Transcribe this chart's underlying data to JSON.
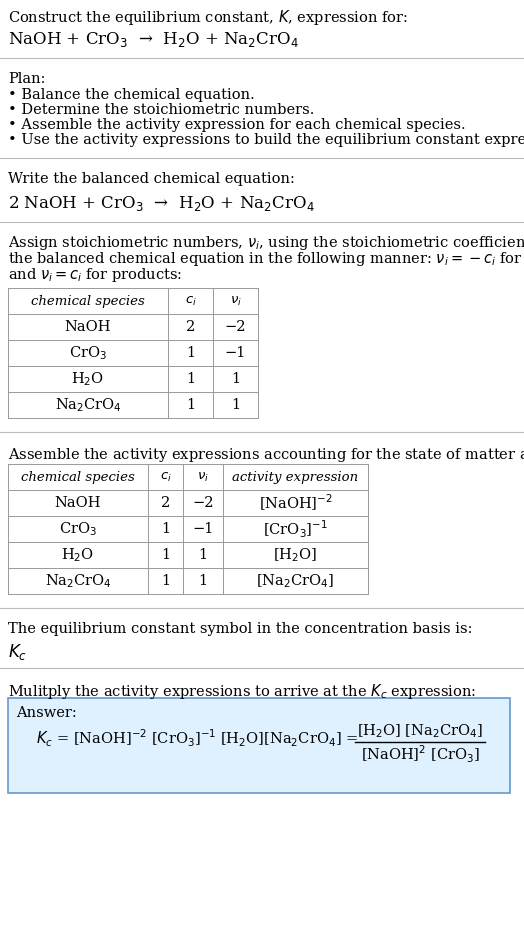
{
  "title_line1": "Construct the equilibrium constant, $K$, expression for:",
  "title_line2": "NaOH + CrO$_3$  →  H$_2$O + Na$_2$CrO$_4$",
  "plan_header": "Plan:",
  "plan_items": [
    "• Balance the chemical equation.",
    "• Determine the stoichiometric numbers.",
    "• Assemble the activity expression for each chemical species.",
    "• Use the activity expressions to build the equilibrium constant expression."
  ],
  "balanced_header": "Write the balanced chemical equation:",
  "balanced_eq": "2 NaOH + CrO$_3$  →  H$_2$O + Na$_2$CrO$_4$",
  "stoich_intro_lines": [
    "Assign stoichiometric numbers, $\\nu_i$, using the stoichiometric coefficients, $c_i$, from",
    "the balanced chemical equation in the following manner: $\\nu_i = -c_i$ for reactants",
    "and $\\nu_i = c_i$ for products:"
  ],
  "table1_headers": [
    "chemical species",
    "$c_i$",
    "$\\nu_i$"
  ],
  "table1_rows": [
    [
      "NaOH",
      "2",
      "−2"
    ],
    [
      "CrO$_3$",
      "1",
      "−1"
    ],
    [
      "H$_2$O",
      "1",
      "1"
    ],
    [
      "Na$_2$CrO$_4$",
      "1",
      "1"
    ]
  ],
  "activity_intro": "Assemble the activity expressions accounting for the state of matter and $\\nu_i$:",
  "table2_headers": [
    "chemical species",
    "$c_i$",
    "$\\nu_i$",
    "activity expression"
  ],
  "table2_rows": [
    [
      "NaOH",
      "2",
      "−2",
      "[NaOH]$^{-2}$"
    ],
    [
      "CrO$_3$",
      "1",
      "−1",
      "[CrO$_3$]$^{-1}$"
    ],
    [
      "H$_2$O",
      "1",
      "1",
      "[H$_2$O]"
    ],
    [
      "Na$_2$CrO$_4$",
      "1",
      "1",
      "[Na$_2$CrO$_4$]"
    ]
  ],
  "kc_symbol_text": "The equilibrium constant symbol in the concentration basis is:",
  "kc_symbol": "$K_c$",
  "multiply_text": "Mulitply the activity expressions to arrive at the $K_c$ expression:",
  "answer_label": "Answer:",
  "answer_line1": "$K_c$ = [NaOH]$^{-2}$ [CrO$_3$]$^{-1}$ [H$_2$O][Na$_2$CrO$_4$] =",
  "answer_frac_num": "[H$_2$O] [Na$_2$CrO$_4$]",
  "answer_frac_den": "[NaOH]$^2$ [CrO$_3$]",
  "answer_box_color": "#dff0ff",
  "answer_box_border": "#6699cc",
  "bg_color": "#ffffff",
  "text_color": "#000000",
  "table_border_color": "#999999",
  "separator_color": "#bbbbbb",
  "font_size": 10.5,
  "small_font_size": 9.5,
  "big_font_size": 12
}
